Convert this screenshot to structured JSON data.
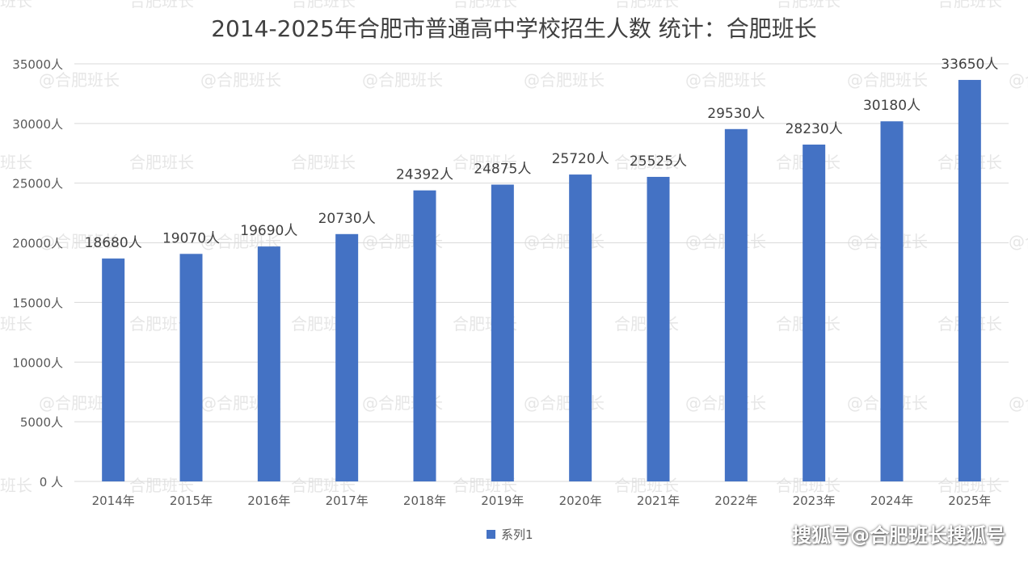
{
  "title": "2014-2025年合肥市普通高中学校招生人数   统计：合肥班长",
  "watermarks": [
    "@合肥班长",
    "合肥班长"
  ],
  "footer_brand": "搜狐号@合肥班长搜狐号",
  "colors": {
    "bar": "#4472C4",
    "grid": "#D9D9D9",
    "axis_text": "#595959",
    "label_text": "#404040",
    "watermark": "#E6E6E6"
  },
  "chart_data": {
    "type": "bar",
    "title": "2014-2025年合肥市普通高中学校招生人数   统计：合肥班长",
    "categories": [
      "2014年",
      "2015年",
      "2016年",
      "2017年",
      "2018年",
      "2019年",
      "2020年",
      "2021年",
      "2022年",
      "2023年",
      "2024年",
      "2025年"
    ],
    "series": [
      {
        "name": "系列1",
        "values": [
          18680,
          19070,
          19690,
          20730,
          24392,
          24875,
          25720,
          25525,
          29530,
          28230,
          30180,
          33650
        ]
      }
    ],
    "data_labels": [
      "18680人",
      "19070人",
      "19690人",
      "20730人",
      "24392人",
      "24875人",
      "25720人",
      "25525人",
      "29530人",
      "28230人",
      "30180人",
      "33650人"
    ],
    "y_ticks": [
      "0 人",
      "5000人",
      "10000人",
      "15000人",
      "20000人",
      "25000人",
      "30000人",
      "35000人"
    ],
    "ylim": [
      0,
      35000
    ],
    "y_step": 5000,
    "grid": true,
    "legend": "bottom-center"
  }
}
